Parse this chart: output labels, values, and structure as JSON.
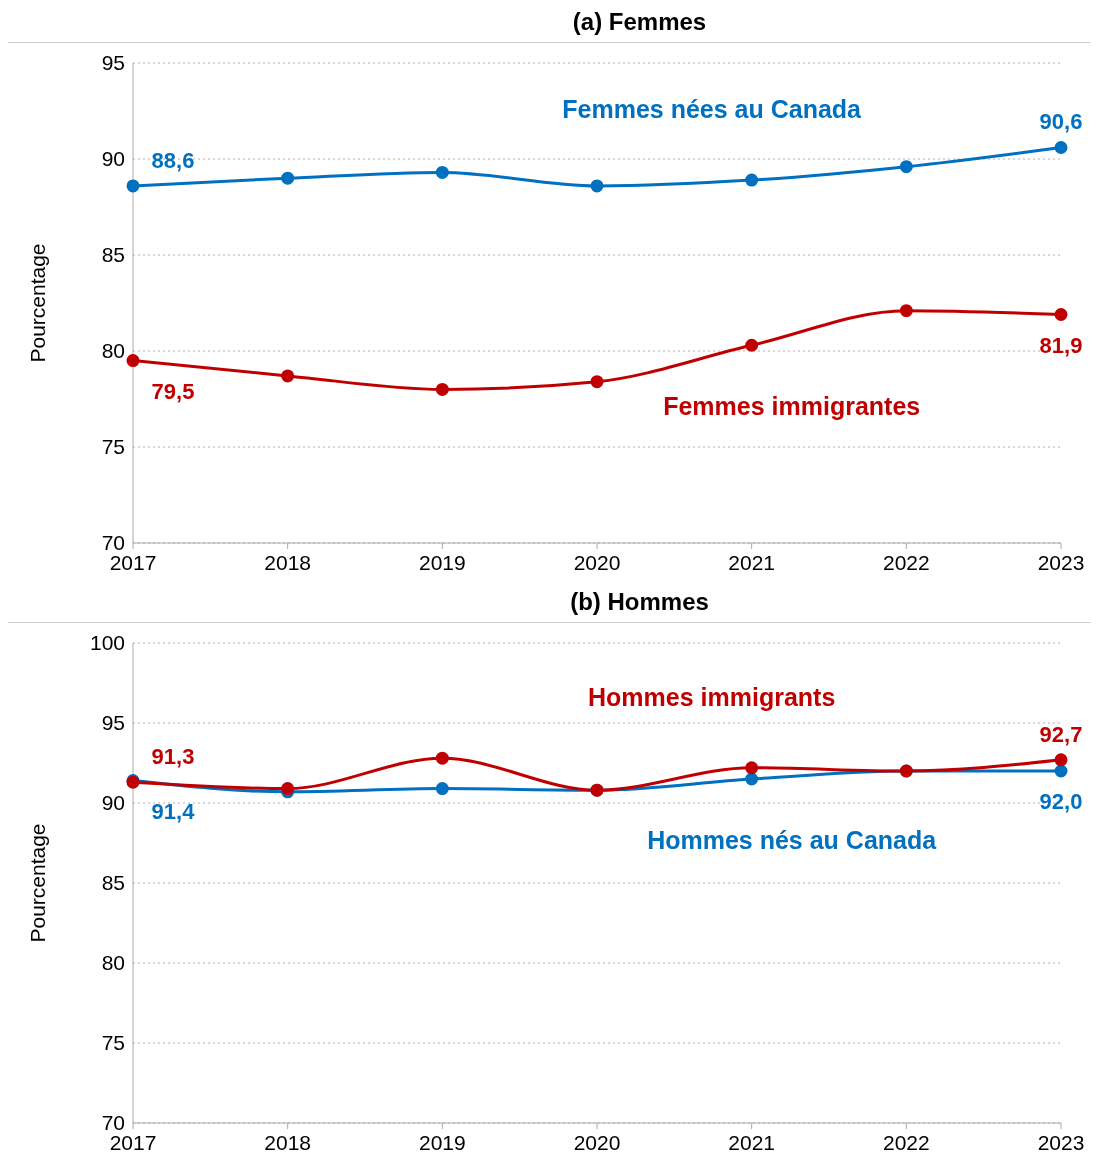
{
  "chart_data": [
    {
      "type": "line",
      "title": "(a) Femmes",
      "ylabel": "Pourcentage",
      "categories": [
        "2017",
        "2018",
        "2019",
        "2020",
        "2021",
        "2022",
        "2023"
      ],
      "ylim": [
        70,
        95
      ],
      "yticks": [
        70,
        75,
        80,
        85,
        90,
        95
      ],
      "grid": "y",
      "legend": false,
      "marker": "circle",
      "line_style": "solid",
      "series": [
        {
          "name": "Femmes nées au Canada",
          "color": "#0070c0",
          "values": [
            88.6,
            89.0,
            89.3,
            88.6,
            88.9,
            89.6,
            90.6
          ],
          "value_labels": [
            "88,6",
            null,
            null,
            null,
            null,
            null,
            "90,6"
          ]
        },
        {
          "name": "Femmes immigrantes",
          "color": "#c00000",
          "values": [
            79.5,
            78.7,
            78.0,
            78.4,
            80.3,
            82.1,
            81.9
          ],
          "value_labels": [
            "79,5",
            null,
            null,
            null,
            null,
            null,
            "81,9"
          ]
        }
      ]
    },
    {
      "type": "line",
      "title": "(b) Hommes",
      "ylabel": "Pourcentage",
      "categories": [
        "2017",
        "2018",
        "2019",
        "2020",
        "2021",
        "2022",
        "2023"
      ],
      "ylim": [
        70,
        100
      ],
      "yticks": [
        70,
        75,
        80,
        85,
        90,
        95,
        100
      ],
      "grid": "y",
      "legend": false,
      "marker": "circle",
      "line_style": "solid",
      "series": [
        {
          "name": "Hommes immigrants",
          "color": "#c00000",
          "values": [
            91.3,
            90.9,
            92.8,
            90.8,
            92.2,
            92.0,
            92.7
          ],
          "value_labels": [
            "91,3",
            null,
            null,
            null,
            null,
            null,
            "92,7"
          ]
        },
        {
          "name": "Hommes nés au Canada",
          "color": "#0070c0",
          "values": [
            91.4,
            90.7,
            90.9,
            90.8,
            91.5,
            92.0,
            92.0
          ],
          "value_labels": [
            "91,4",
            null,
            null,
            null,
            null,
            null,
            "92,0"
          ]
        }
      ]
    }
  ]
}
